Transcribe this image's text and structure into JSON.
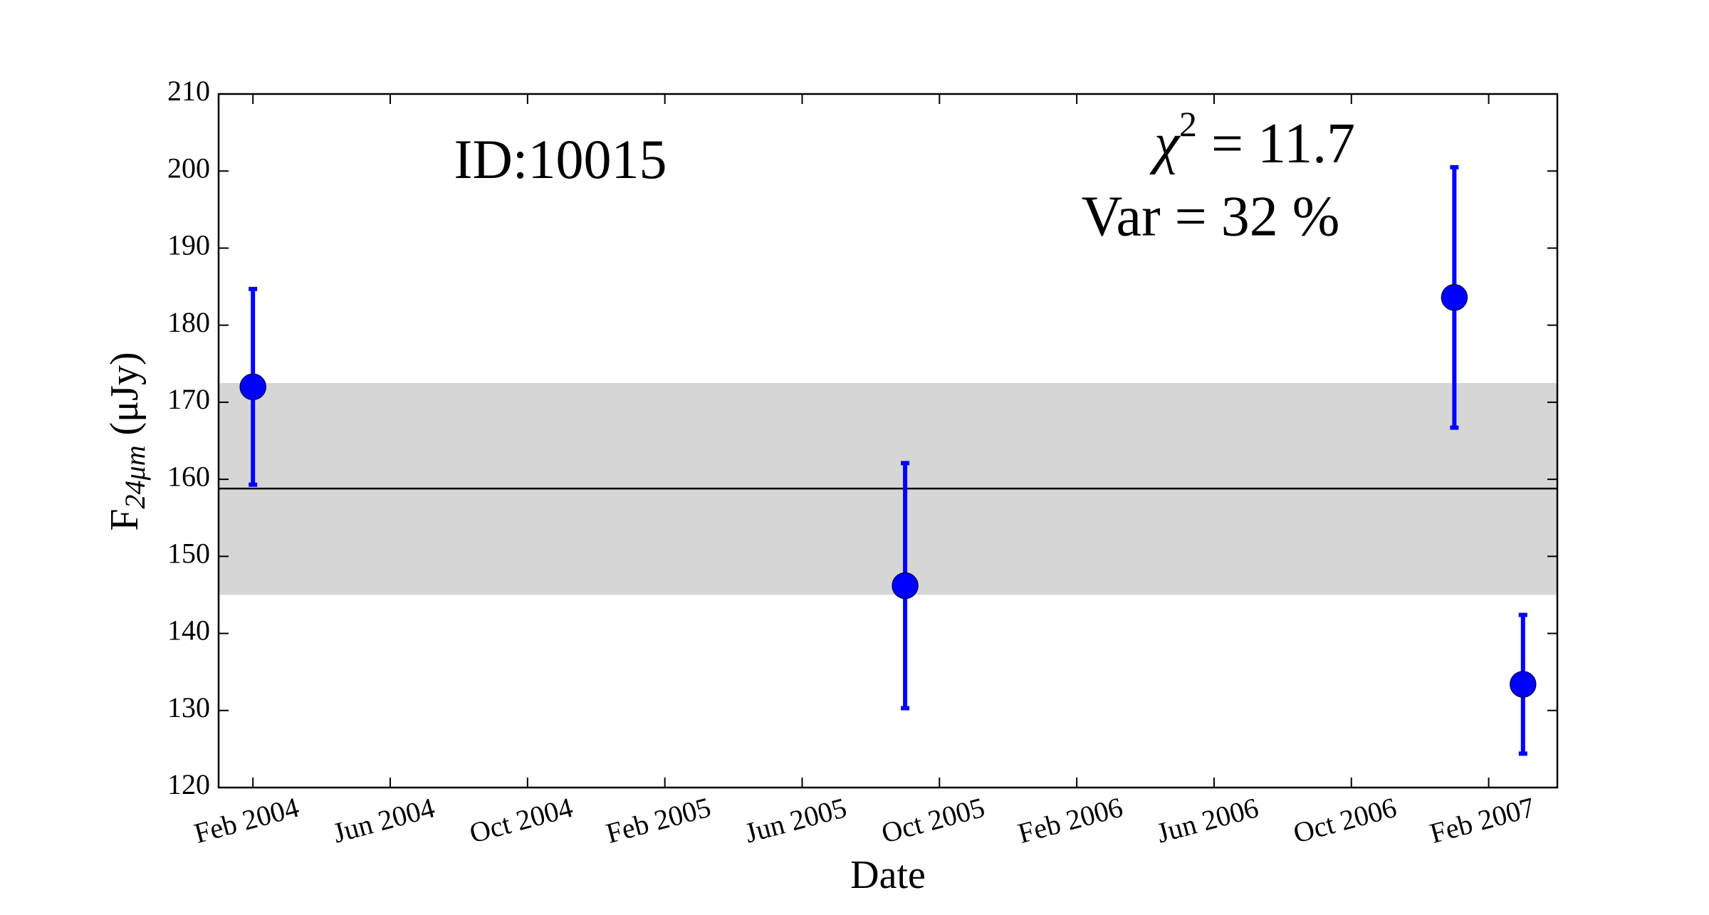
{
  "chart_data": {
    "type": "errorbar",
    "annotations": {
      "id": "ID:10015",
      "chi_symbol": "χ",
      "chi_exponent": "2",
      "chi_value": " = 11.7",
      "variability": "Var = 32 %"
    },
    "x_label": "Date",
    "y_label": {
      "main": "F",
      "subscript": "24μm",
      "unit": " (μJy)"
    },
    "x": [
      "2004-02",
      "2005-09",
      "2007-01",
      "2007-03"
    ],
    "series": [
      {
        "color": "#0000ff",
        "values": [
          172.0,
          146.2,
          183.6,
          133.4
        ],
        "errors": [
          12.7,
          15.9,
          16.9,
          9.0
        ]
      }
    ],
    "mean": 158.8,
    "mean_color": "#000000",
    "band": [
      145.0,
      172.5
    ],
    "band_color": "#d6d6d6",
    "xlim": [
      "2004-01",
      "2007-04"
    ],
    "xticks": [
      {
        "value": "2004-02",
        "label": "Feb 2004"
      },
      {
        "value": "2004-06",
        "label": "Jun 2004"
      },
      {
        "value": "2004-10",
        "label": "Oct 2004"
      },
      {
        "value": "2005-02",
        "label": "Feb 2005"
      },
      {
        "value": "2005-06",
        "label": "Jun 2005"
      },
      {
        "value": "2005-10",
        "label": "Oct 2005"
      },
      {
        "value": "2006-02",
        "label": "Feb 2006"
      },
      {
        "value": "2006-06",
        "label": "Jun 2006"
      },
      {
        "value": "2006-10",
        "label": "Oct 2006"
      },
      {
        "value": "2007-02",
        "label": "Feb 2007"
      }
    ],
    "ylim": [
      120,
      210
    ],
    "yticks": [
      120,
      130,
      140,
      150,
      160,
      170,
      180,
      190,
      200,
      210
    ]
  }
}
